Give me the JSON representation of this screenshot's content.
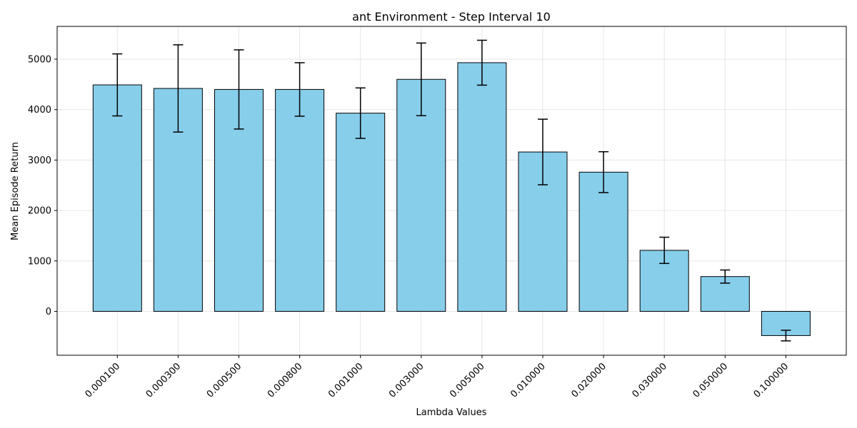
{
  "chart_data": {
    "type": "bar",
    "title": "ant Environment - Step Interval 10",
    "xlabel": "Lambda Values",
    "ylabel": "Mean Episode Return",
    "categories": [
      "0.000100",
      "0.000300",
      "0.000500",
      "0.000800",
      "0.001000",
      "0.003000",
      "0.005000",
      "0.010000",
      "0.020000",
      "0.030000",
      "0.050000",
      "0.100000"
    ],
    "values": [
      4490,
      4420,
      4400,
      4400,
      3930,
      4600,
      4930,
      3160,
      2760,
      1210,
      690,
      -480
    ],
    "errors": [
      615,
      865,
      785,
      530,
      500,
      720,
      445,
      650,
      405,
      260,
      130,
      105
    ],
    "yticks": [
      0,
      1000,
      2000,
      3000,
      4000,
      5000
    ],
    "ylim": [
      -870,
      5650
    ],
    "grid": true,
    "colors": {
      "bar_fill": "#87ceeb",
      "bar_edge": "#000000",
      "error_bar": "#000000",
      "grid": "#e6e6e6"
    }
  }
}
